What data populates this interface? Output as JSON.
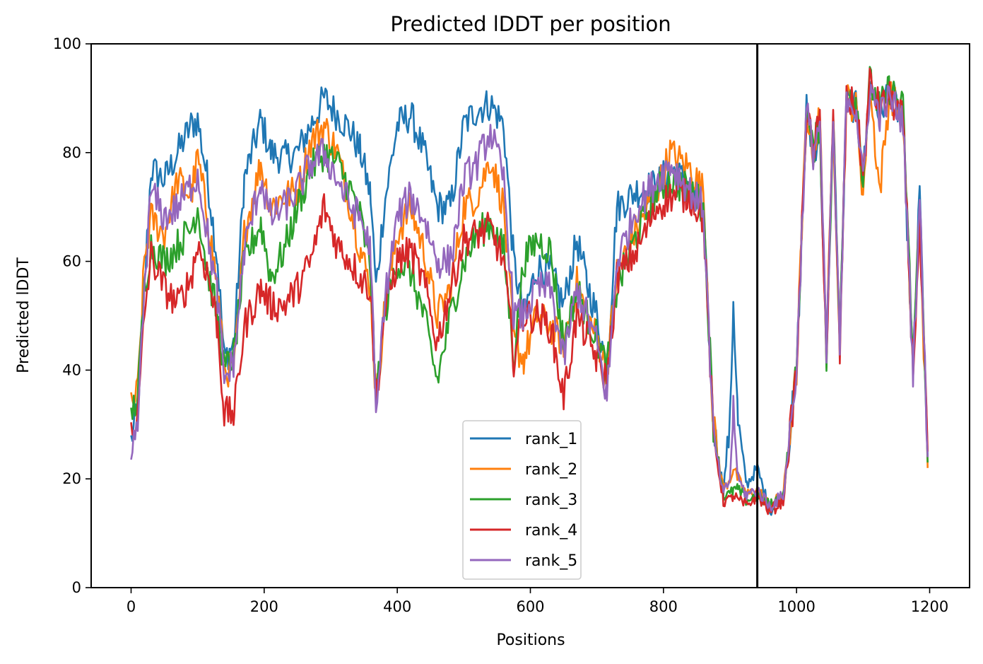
{
  "chart_data": {
    "type": "line",
    "title": "Predicted lDDT per position",
    "xlabel": "Positions",
    "ylabel": "Predicted lDDT",
    "xlim": [
      -60,
      1260
    ],
    "ylim": [
      0,
      100
    ],
    "xticks": [
      0,
      200,
      400,
      600,
      800,
      1000,
      1200
    ],
    "yticks": [
      0,
      20,
      40,
      60,
      80,
      100
    ],
    "vline_x": 941,
    "vline_color": "#000000",
    "grid": false,
    "legend_position": "lower-center",
    "series": [
      {
        "name": "rank_1",
        "color": "#1f77b4",
        "x": [
          0,
          10,
          20,
          30,
          50,
          70,
          90,
          100,
          115,
          130,
          140,
          155,
          170,
          195,
          210,
          230,
          250,
          270,
          290,
          310,
          330,
          345,
          360,
          368,
          380,
          400,
          420,
          440,
          460,
          480,
          500,
          520,
          540,
          560,
          575,
          590,
          610,
          630,
          650,
          670,
          685,
          700,
          715,
          730,
          760,
          790,
          810,
          840,
          860,
          875,
          890,
          900,
          905,
          912,
          925,
          941,
          960,
          980,
          1000,
          1015,
          1025,
          1035,
          1045,
          1055,
          1065,
          1075,
          1090,
          1100,
          1110,
          1125,
          1140,
          1160,
          1175,
          1185,
          1197
        ],
        "y": [
          27,
          33,
          55,
          77,
          75,
          80,
          85,
          86,
          75,
          60,
          42,
          45,
          75,
          86,
          80,
          79,
          80,
          85,
          90,
          87,
          84,
          80,
          72,
          55,
          70,
          85,
          87,
          80,
          70,
          70,
          85,
          88,
          89,
          85,
          60,
          50,
          59,
          58,
          52,
          64,
          56,
          50,
          40,
          70,
          73,
          74,
          77,
          74,
          68,
          30,
          18,
          30,
          53,
          30,
          19,
          22,
          14,
          17,
          40,
          88,
          80,
          84,
          42,
          87,
          45,
          90,
          88,
          75,
          93,
          87,
          92,
          85,
          40,
          73,
          24
        ]
      },
      {
        "name": "rank_2",
        "color": "#ff7f0e",
        "x": [
          0,
          10,
          20,
          30,
          50,
          70,
          90,
          100,
          115,
          130,
          140,
          155,
          170,
          195,
          210,
          230,
          250,
          270,
          290,
          310,
          330,
          345,
          360,
          368,
          380,
          400,
          420,
          440,
          460,
          480,
          500,
          520,
          540,
          560,
          575,
          590,
          610,
          630,
          650,
          670,
          685,
          700,
          715,
          730,
          760,
          790,
          810,
          840,
          860,
          875,
          890,
          900,
          905,
          912,
          925,
          941,
          960,
          980,
          1000,
          1015,
          1025,
          1035,
          1045,
          1055,
          1065,
          1075,
          1090,
          1100,
          1110,
          1125,
          1140,
          1160,
          1175,
          1185,
          1197
        ],
        "y": [
          33,
          36,
          60,
          68,
          65,
          75,
          72,
          79,
          68,
          55,
          40,
          40,
          65,
          78,
          70,
          72,
          73,
          82,
          85,
          80,
          70,
          62,
          55,
          34,
          50,
          65,
          70,
          62,
          50,
          55,
          70,
          72,
          79,
          70,
          45,
          42,
          50,
          48,
          45,
          56,
          50,
          46,
          40,
          58,
          66,
          73,
          80,
          77,
          73,
          30,
          18,
          20,
          22,
          20,
          17,
          18,
          15,
          17,
          40,
          88,
          80,
          87,
          42,
          87,
          45,
          90,
          88,
          72,
          92,
          73,
          91,
          86,
          40,
          68,
          22
        ]
      },
      {
        "name": "rank_3",
        "color": "#2ca02c",
        "x": [
          0,
          10,
          20,
          30,
          50,
          70,
          90,
          100,
          115,
          130,
          140,
          155,
          170,
          195,
          210,
          230,
          250,
          270,
          290,
          310,
          330,
          345,
          360,
          368,
          380,
          400,
          420,
          440,
          460,
          480,
          500,
          520,
          540,
          560,
          575,
          590,
          610,
          630,
          650,
          670,
          685,
          700,
          715,
          730,
          760,
          790,
          810,
          840,
          860,
          875,
          890,
          900,
          905,
          912,
          925,
          941,
          960,
          980,
          1000,
          1015,
          1025,
          1035,
          1045,
          1055,
          1065,
          1075,
          1090,
          1100,
          1110,
          1125,
          1140,
          1160,
          1175,
          1185,
          1197
        ],
        "y": [
          32,
          35,
          55,
          63,
          60,
          63,
          66,
          70,
          58,
          50,
          40,
          43,
          60,
          67,
          57,
          62,
          70,
          77,
          80,
          78,
          73,
          68,
          58,
          35,
          50,
          60,
          58,
          50,
          38,
          50,
          60,
          65,
          67,
          62,
          42,
          60,
          64,
          62,
          45,
          55,
          50,
          46,
          40,
          55,
          65,
          73,
          75,
          73,
          70,
          30,
          17,
          17,
          18,
          18,
          16,
          17,
          15,
          17,
          40,
          88,
          80,
          86,
          42,
          87,
          45,
          92,
          90,
          75,
          93,
          88,
          92,
          88,
          42,
          70,
          23
        ]
      },
      {
        "name": "rank_4",
        "color": "#d62728",
        "x": [
          0,
          10,
          20,
          30,
          50,
          70,
          90,
          100,
          115,
          130,
          140,
          155,
          170,
          195,
          210,
          230,
          250,
          270,
          290,
          310,
          330,
          345,
          360,
          368,
          380,
          400,
          420,
          440,
          460,
          480,
          500,
          520,
          540,
          560,
          575,
          590,
          610,
          630,
          650,
          670,
          685,
          700,
          715,
          730,
          760,
          790,
          810,
          840,
          860,
          875,
          890,
          900,
          905,
          912,
          925,
          941,
          960,
          980,
          1000,
          1015,
          1025,
          1035,
          1045,
          1055,
          1065,
          1075,
          1090,
          1100,
          1110,
          1125,
          1140,
          1160,
          1175,
          1185,
          1197
        ],
        "y": [
          30,
          31,
          50,
          61,
          55,
          52,
          57,
          63,
          58,
          48,
          32,
          32,
          48,
          55,
          52,
          52,
          55,
          60,
          70,
          63,
          60,
          57,
          55,
          34,
          50,
          60,
          62,
          56,
          45,
          55,
          64,
          65,
          66,
          60,
          42,
          50,
          50,
          48,
          35,
          50,
          46,
          42,
          38,
          57,
          62,
          70,
          72,
          72,
          68,
          28,
          16,
          16,
          17,
          16,
          15,
          17,
          14,
          16,
          40,
          88,
          80,
          86,
          42,
          86,
          43,
          90,
          88,
          75,
          93,
          88,
          90,
          86,
          40,
          65,
          25
        ]
      },
      {
        "name": "rank_5",
        "color": "#9467bd",
        "x": [
          0,
          10,
          20,
          30,
          50,
          70,
          90,
          100,
          115,
          130,
          140,
          155,
          170,
          195,
          210,
          230,
          250,
          270,
          290,
          310,
          330,
          345,
          360,
          368,
          380,
          400,
          420,
          440,
          460,
          480,
          500,
          520,
          540,
          560,
          575,
          590,
          610,
          630,
          650,
          670,
          685,
          700,
          715,
          730,
          760,
          790,
          810,
          840,
          860,
          875,
          890,
          900,
          905,
          912,
          925,
          941,
          960,
          980,
          1000,
          1015,
          1025,
          1035,
          1045,
          1055,
          1065,
          1075,
          1090,
          1100,
          1110,
          1125,
          1140,
          1160,
          1175,
          1185,
          1197
        ],
        "y": [
          23,
          30,
          55,
          73,
          68,
          70,
          74,
          76,
          65,
          53,
          38,
          42,
          62,
          75,
          68,
          70,
          73,
          78,
          80,
          75,
          70,
          68,
          62,
          30,
          52,
          68,
          72,
          68,
          60,
          60,
          75,
          78,
          84,
          75,
          50,
          50,
          55,
          55,
          42,
          55,
          50,
          45,
          35,
          60,
          70,
          75,
          78,
          73,
          70,
          28,
          17,
          20,
          33,
          20,
          17,
          18,
          15,
          17,
          40,
          88,
          80,
          86,
          42,
          86,
          43,
          91,
          88,
          74,
          92,
          87,
          90,
          86,
          40,
          72,
          24
        ]
      }
    ]
  }
}
